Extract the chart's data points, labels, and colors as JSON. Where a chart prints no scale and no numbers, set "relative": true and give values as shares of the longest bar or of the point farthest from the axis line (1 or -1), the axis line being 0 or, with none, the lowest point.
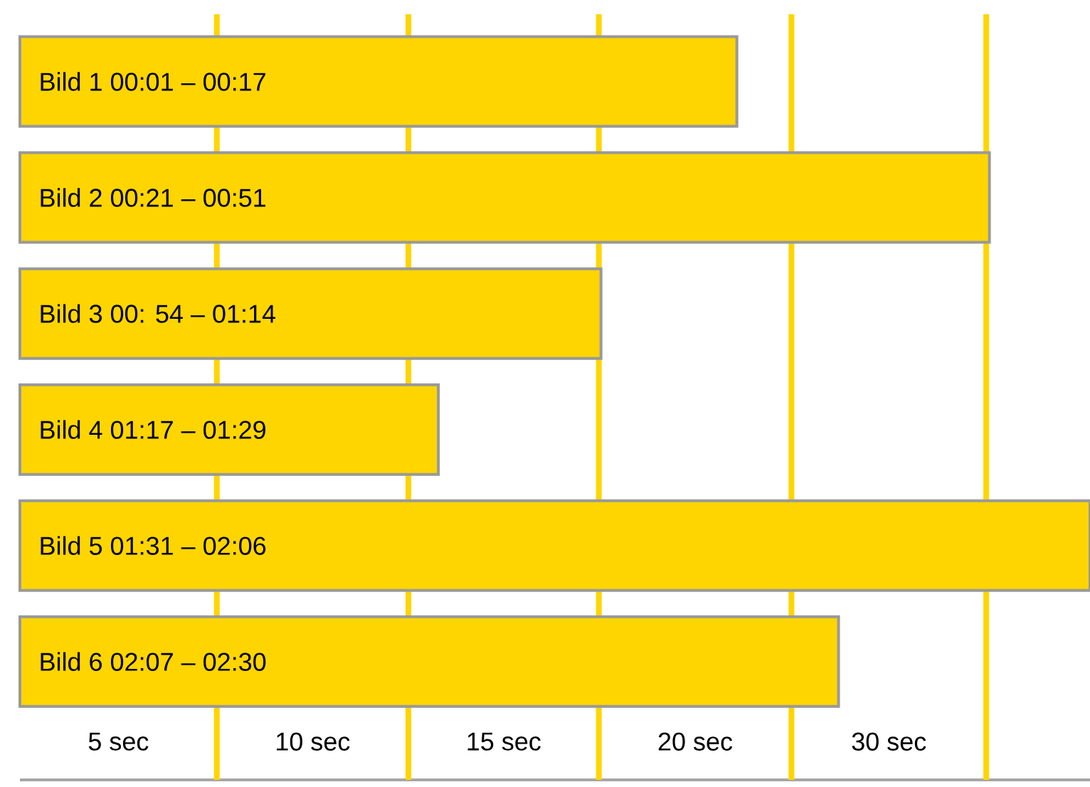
{
  "chart_data": {
    "type": "bar",
    "orientation": "horizontal",
    "relative": true,
    "categories": [
      "Bild 1 00:01 – 00:17",
      "Bild 2  00:21 – 00:51",
      "Bild 3  00: 54 – 01:14",
      "Bild 4  01:17 – 01:29",
      "Bild 5  01:31 – 02:06",
      "Bild 6  02:07 – 02:30"
    ],
    "values": [
      0.67,
      0.906,
      0.543,
      0.391,
      1,
      0.765
    ],
    "color": "#ffd500",
    "ref_lines": [
      {
        "axis": "x",
        "value": 0.184,
        "color": "#ffd500"
      },
      {
        "axis": "x",
        "value": 0.363,
        "color": "#ffd500"
      },
      {
        "axis": "x",
        "value": 0.541,
        "color": "#ffd500"
      },
      {
        "axis": "x",
        "value": 0.721,
        "color": "#ffd500"
      },
      {
        "axis": "x",
        "value": 0.903,
        "color": "#ffd500"
      }
    ],
    "annotations": [
      "5 sec",
      "10 sec",
      "15 sec",
      "20 sec",
      "30 sec"
    ]
  }
}
